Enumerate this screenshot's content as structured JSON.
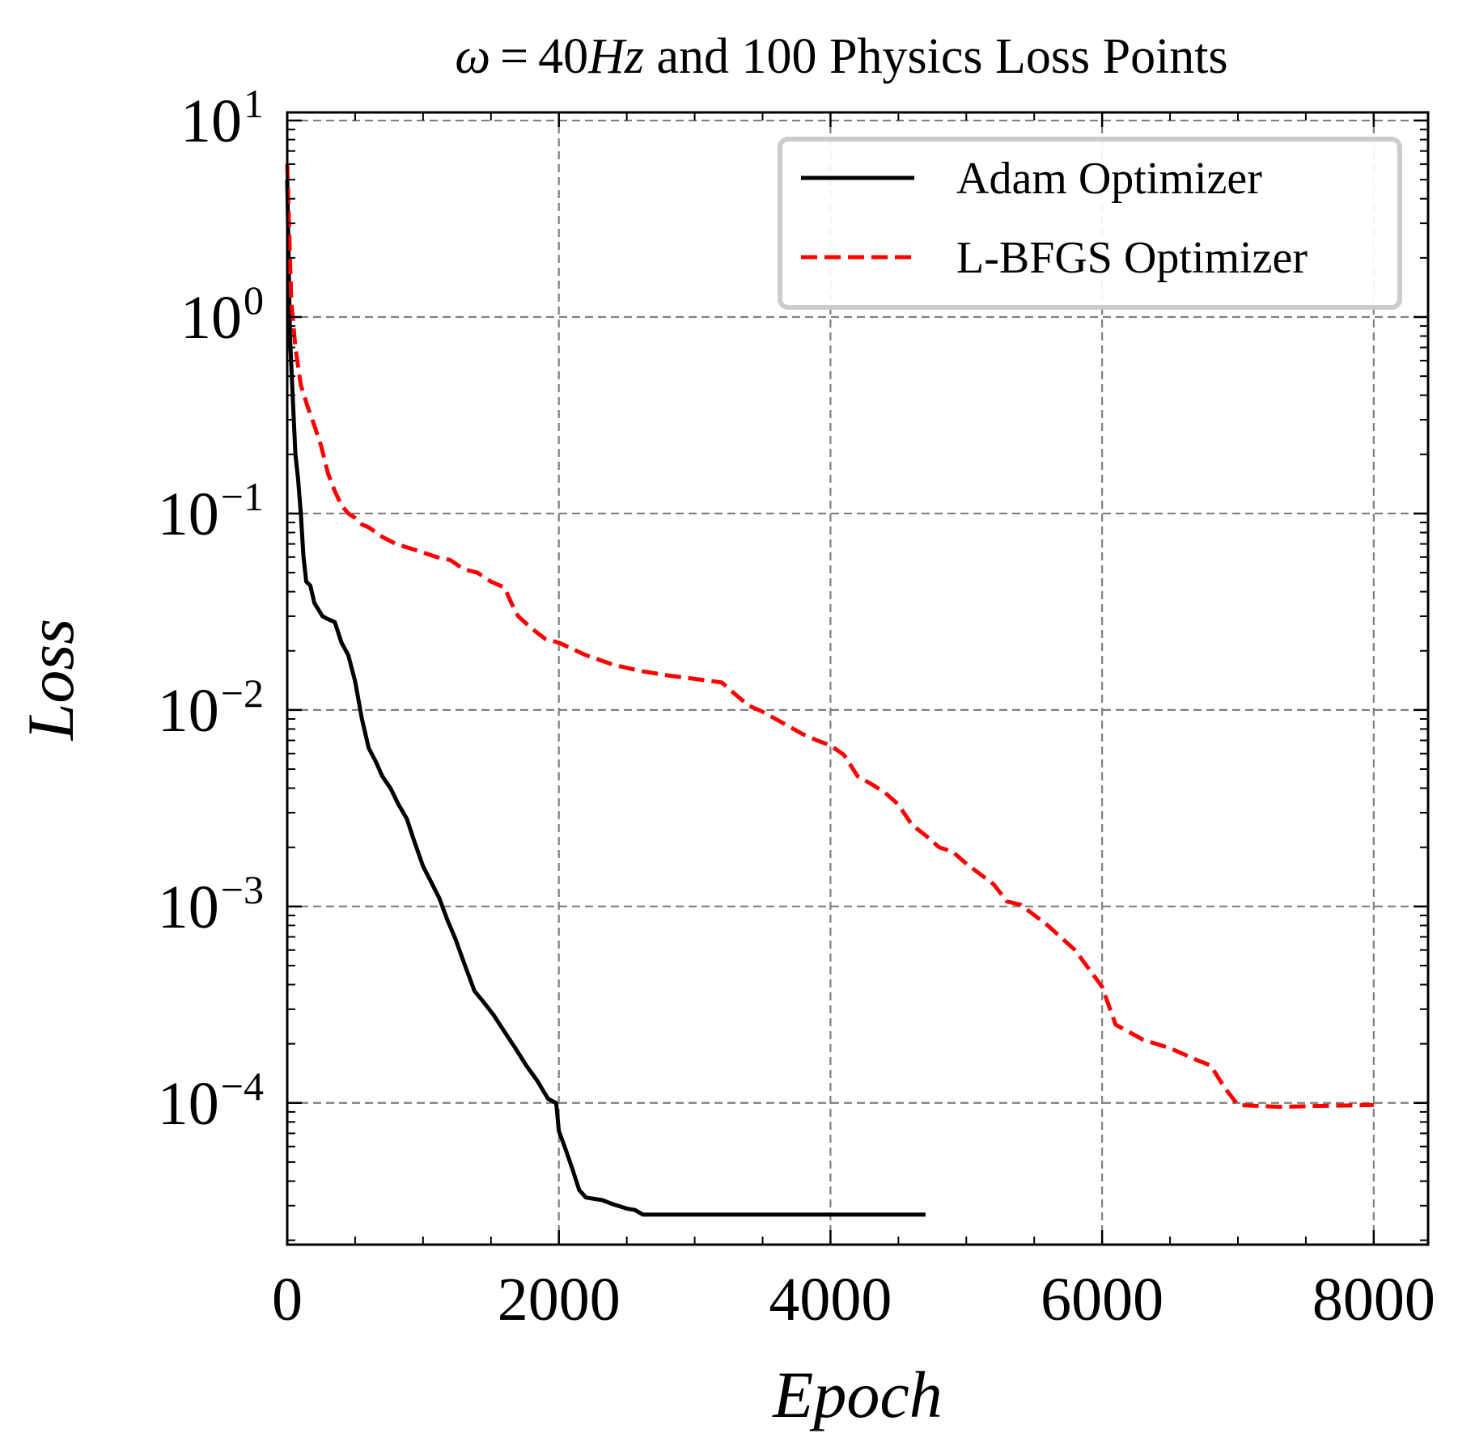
{
  "chart_data": {
    "type": "line",
    "title": {
      "symbol": "ω",
      "equals": "=",
      "value": "40",
      "unit": "Hz",
      "rest": " and 100 Physics Loss Points"
    },
    "xlabel": "Epoch",
    "ylabel": "Loss",
    "y_scale": "log",
    "xlim": [
      0,
      8400
    ],
    "ylim": [
      1.9e-05,
      11
    ],
    "grid": true,
    "legend_position": "top-right",
    "x_ticks": [
      {
        "value": 0,
        "label": "0"
      },
      {
        "value": 2000,
        "label": "2000"
      },
      {
        "value": 4000,
        "label": "4000"
      },
      {
        "value": 6000,
        "label": "6000"
      },
      {
        "value": 8000,
        "label": "8000"
      }
    ],
    "y_ticks": [
      {
        "value": 10,
        "base": "10",
        "exp": "1"
      },
      {
        "value": 1,
        "base": "10",
        "exp": "0"
      },
      {
        "value": 0.1,
        "base": "10",
        "exp": "−1"
      },
      {
        "value": 0.01,
        "base": "10",
        "exp": "−2"
      },
      {
        "value": 0.001,
        "base": "10",
        "exp": "−3"
      },
      {
        "value": 0.0001,
        "base": "10",
        "exp": "−4"
      }
    ],
    "series": [
      {
        "name": "Adam Optimizer",
        "color": "#000000",
        "dash": "solid",
        "x": [
          0,
          20,
          40,
          60,
          80,
          100,
          120,
          140,
          170,
          200,
          260,
          300,
          350,
          400,
          450,
          500,
          550,
          600,
          650,
          700,
          760,
          820,
          880,
          940,
          1000,
          1060,
          1120,
          1180,
          1240,
          1300,
          1380,
          1440,
          1520,
          1600,
          1680,
          1760,
          1840,
          1920,
          1980,
          2000,
          2050,
          2100,
          2150,
          2200,
          2260,
          2320,
          2400,
          2500,
          2560,
          2620,
          2700,
          4700
        ],
        "y": [
          5.0,
          0.8,
          0.4,
          0.2,
          0.15,
          0.1,
          0.06,
          0.045,
          0.043,
          0.035,
          0.03,
          0.029,
          0.028,
          0.022,
          0.019,
          0.014,
          0.009,
          0.0064,
          0.0055,
          0.0046,
          0.004,
          0.0033,
          0.0028,
          0.0021,
          0.0016,
          0.00133,
          0.0011,
          0.00085,
          0.00068,
          0.00052,
          0.00037,
          0.00033,
          0.00028,
          0.00023,
          0.00019,
          0.000155,
          0.00013,
          0.000105,
          0.0001,
          7.2e-05,
          5.8e-05,
          4.6e-05,
          3.6e-05,
          3.3e-05,
          3.25e-05,
          3.2e-05,
          3.05e-05,
          2.9e-05,
          2.85e-05,
          2.7e-05,
          2.7e-05,
          2.7e-05
        ]
      },
      {
        "name": "L-BFGS Optimizer",
        "color": "#ff0000",
        "dash": "dashed",
        "x": [
          0,
          30,
          60,
          100,
          150,
          200,
          250,
          300,
          350,
          400,
          450,
          500,
          550,
          600,
          700,
          800,
          950,
          1100,
          1200,
          1300,
          1400,
          1500,
          1600,
          1650,
          1700,
          1800,
          1900,
          2000,
          2200,
          2400,
          2600,
          2800,
          3000,
          3200,
          3300,
          3400,
          3500,
          3700,
          3800,
          3900,
          4000,
          4100,
          4200,
          4300,
          4400,
          4500,
          4600,
          4700,
          4800,
          4900,
          5000,
          5200,
          5300,
          5400,
          5600,
          5800,
          6000,
          6100,
          6300,
          6500,
          6700,
          6800,
          6900,
          7000,
          7300,
          7600,
          8000
        ],
        "y": [
          6.0,
          1.2,
          0.7,
          0.45,
          0.35,
          0.28,
          0.22,
          0.16,
          0.13,
          0.11,
          0.1,
          0.095,
          0.088,
          0.085,
          0.076,
          0.07,
          0.065,
          0.06,
          0.058,
          0.052,
          0.05,
          0.045,
          0.042,
          0.035,
          0.03,
          0.026,
          0.023,
          0.022,
          0.019,
          0.017,
          0.0158,
          0.015,
          0.0144,
          0.0138,
          0.012,
          0.0105,
          0.0098,
          0.0082,
          0.0075,
          0.007,
          0.0066,
          0.0059,
          0.0046,
          0.0042,
          0.0038,
          0.0033,
          0.0026,
          0.0023,
          0.002,
          0.0019,
          0.00165,
          0.0013,
          0.00106,
          0.00102,
          0.0008,
          0.0006,
          0.00039,
          0.00025,
          0.00021,
          0.00019,
          0.000165,
          0.000155,
          0.00012,
          9.75e-05,
          9.55e-05,
          9.65e-05,
          9.75e-05
        ]
      }
    ]
  }
}
